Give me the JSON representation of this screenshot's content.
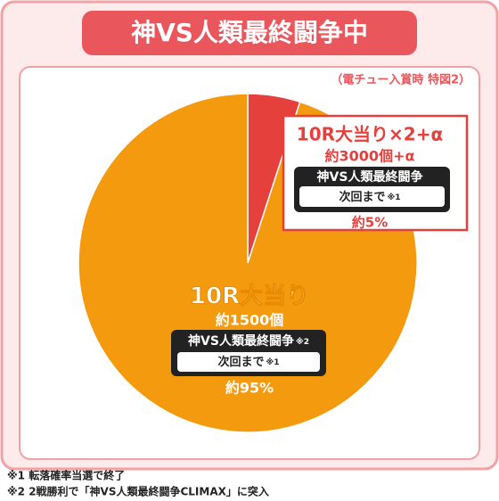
{
  "chart_data": {
    "type": "pie",
    "title": "神VS人類最終闘争中",
    "subtitle": "（電チュー入賞時 特図2）",
    "categories": [
      "10R大当り×2+α",
      "10R大当り"
    ],
    "values": [
      5,
      95
    ],
    "value_labels": [
      "約5%",
      "約95%"
    ],
    "colors": [
      "#e5403c",
      "#f39a0f"
    ],
    "details": [
      "約3000個+α",
      "約1500個"
    ],
    "modes": [
      "神VS人類最終闘争",
      "神VS人類最終闘争"
    ],
    "mode_notes": [
      null,
      "※2"
    ],
    "next_labels": [
      "次回まで",
      "次回まで"
    ],
    "next_notes": [
      "※1",
      "※1"
    ],
    "footnotes": [
      "※1 転落確率当選で終了",
      "※2 2戦勝利で「神VS人類最終闘争CLIMAX」に突入"
    ]
  }
}
